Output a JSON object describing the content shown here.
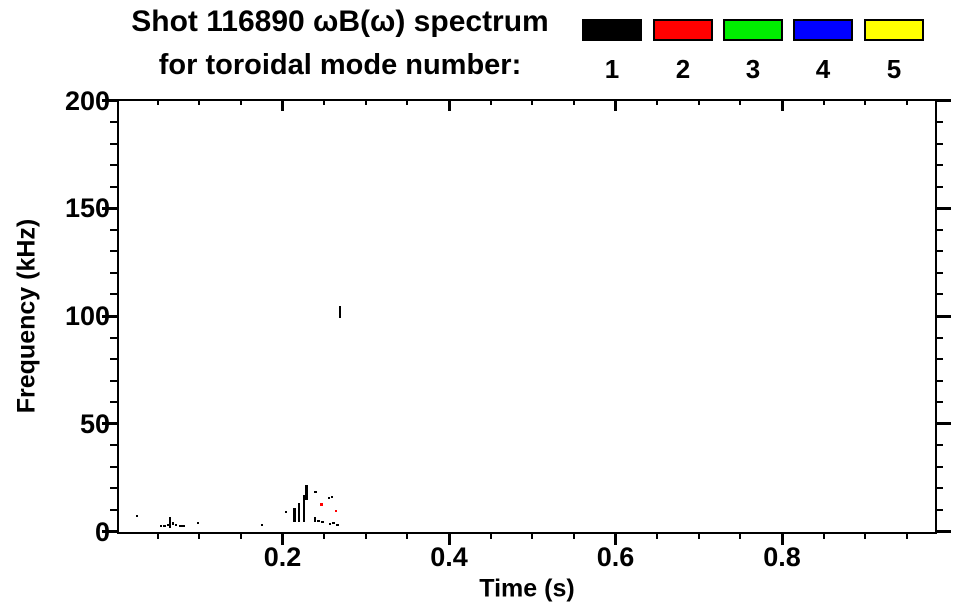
{
  "title": {
    "line1": "Shot 116890 ωB(ω) spectrum",
    "line2": "for toroidal mode number:"
  },
  "legend": {
    "modes": [
      {
        "label": "1",
        "color": "#000000"
      },
      {
        "label": "2",
        "color": "#ff0000"
      },
      {
        "label": "3",
        "color": "#00ee00"
      },
      {
        "label": "4",
        "color": "#0000ff"
      },
      {
        "label": "5",
        "color": "#ffff00"
      }
    ]
  },
  "axes": {
    "x": {
      "title": "Time (s)",
      "range": [
        0,
        0.983
      ],
      "major_ticks": [
        0.2,
        0.4,
        0.6,
        0.8
      ],
      "tick_labels": [
        "0.2",
        "0.4",
        "0.6",
        "0.8"
      ],
      "minor_step": 0.05
    },
    "y": {
      "title": "Frequency (kHz)",
      "range": [
        0,
        200
      ],
      "major_ticks": [
        0,
        50,
        100,
        150,
        200
      ],
      "tick_labels": [
        "0",
        "50",
        "100",
        "150",
        "200"
      ],
      "minor_step": 10
    }
  },
  "chart_data": {
    "type": "scatter",
    "title": "Shot 116890 ωB(ω) spectrum for toroidal mode number: 1 2 3 4 5",
    "xlabel": "Time (s)",
    "ylabel": "Frequency (kHz)",
    "xlim": [
      0,
      0.983
    ],
    "ylim": [
      0,
      200
    ],
    "grid": false,
    "legend_position": "top-right",
    "series": [
      {
        "name": "n=1",
        "color": "#000000",
        "points_t_flow_fhigh": [
          [
            0.025,
            6.5,
            7.5
          ],
          [
            0.054,
            2.5,
            3.2
          ],
          [
            0.058,
            2.0,
            3.0
          ],
          [
            0.062,
            2.5,
            3.5
          ],
          [
            0.0645,
            1.5,
            6.5
          ],
          [
            0.068,
            3.0,
            4.2
          ],
          [
            0.072,
            2.8,
            3.6
          ],
          [
            0.077,
            2.5,
            3.2
          ],
          [
            0.081,
            2.5,
            3.2
          ],
          [
            0.098,
            3.5,
            4.5
          ],
          [
            0.175,
            2.5,
            3.5
          ],
          [
            0.204,
            8.4,
            9.4
          ],
          [
            0.214,
            4.2,
            11.1
          ],
          [
            0.2195,
            4.2,
            13.4
          ],
          [
            0.2255,
            4.2,
            17.1
          ],
          [
            0.2285,
            14.8,
            21.8
          ],
          [
            0.2395,
            18.0,
            19.0
          ],
          [
            0.239,
            4.2,
            6.9
          ],
          [
            0.243,
            4.5,
            5.5
          ],
          [
            0.2475,
            4.0,
            5.0
          ],
          [
            0.2555,
            15.2,
            16.2
          ],
          [
            0.259,
            15.5,
            16.5
          ],
          [
            0.257,
            3.0,
            4.0
          ],
          [
            0.261,
            3.5,
            4.5
          ],
          [
            0.2655,
            2.5,
            3.5
          ],
          [
            0.269,
            99.0,
            104.5
          ]
        ]
      },
      {
        "name": "n=2",
        "color": "#ff0000",
        "points_t_flow_fhigh": [
          [
            0.2465,
            12.0,
            13.0
          ],
          [
            0.264,
            9.2,
            10.2
          ]
        ]
      }
    ]
  }
}
